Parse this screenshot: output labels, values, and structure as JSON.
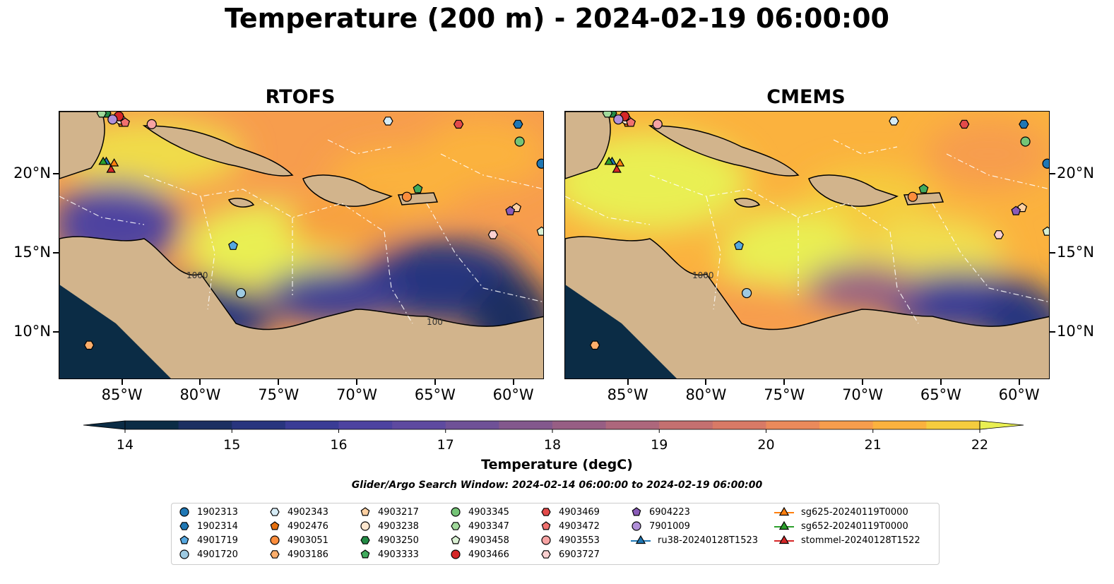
{
  "title": "Temperature (200 m) - 2024-02-19 06:00:00",
  "panels": [
    {
      "title": "RTOFS",
      "contours": [
        {
          "label": "100"
        },
        {
          "label": "100"
        },
        {
          "label": "1000"
        },
        {
          "label": "1000"
        }
      ]
    },
    {
      "title": "CMEMS",
      "contours": [
        {
          "label": "100"
        },
        {
          "label": "1000"
        }
      ]
    }
  ],
  "colorbar": {
    "label": "Temperature (degC)",
    "ticks": [
      "14",
      "15",
      "16",
      "17",
      "18",
      "19",
      "20",
      "21",
      "22"
    ],
    "min": 14,
    "max": 22,
    "step": 0.5,
    "colors": [
      "#0b2c45",
      "#1b2f61",
      "#28357e",
      "#3a3c95",
      "#4d43a0",
      "#5e4aa0",
      "#6f5197",
      "#83588d",
      "#975e84",
      "#ad677c",
      "#c47070",
      "#d87a66",
      "#ea8a5b",
      "#f79d4d",
      "#fbb23e",
      "#f5cc3e",
      "#e9ef52"
    ]
  },
  "lon_ticks": [
    "85°W",
    "80°W",
    "75°W",
    "70°W",
    "65°W",
    "60°W"
  ],
  "lat_ticks": [
    "20°N",
    "15°N",
    "10°N"
  ],
  "search_window": "Glider/Argo Search Window: 2024-02-14 06:00:00 to 2024-02-19 06:00:00",
  "legend": [
    {
      "label": "1902313",
      "marker": "circle",
      "color": "#1f77b4"
    },
    {
      "label": "1902314",
      "marker": "hexagon",
      "color": "#1f77b4"
    },
    {
      "label": "4901719",
      "marker": "pentagon",
      "color": "#56a8e0"
    },
    {
      "label": "4901720",
      "marker": "circle",
      "color": "#9ecae1"
    },
    {
      "label": "4902343",
      "marker": "hexagon",
      "color": "#d6ecf6"
    },
    {
      "label": "4902476",
      "marker": "pentagon",
      "color": "#e6700f"
    },
    {
      "label": "4903051",
      "marker": "circle",
      "color": "#fd8d3c"
    },
    {
      "label": "4903186",
      "marker": "hexagon",
      "color": "#fdae6b"
    },
    {
      "label": "4903217",
      "marker": "pentagon",
      "color": "#fdd0a2"
    },
    {
      "label": "4903238",
      "marker": "circle",
      "color": "#fde6ce"
    },
    {
      "label": "4903250",
      "marker": "hexagon",
      "color": "#238b45"
    },
    {
      "label": "4903333",
      "marker": "pentagon",
      "color": "#41ab5d"
    },
    {
      "label": "4903345",
      "marker": "circle",
      "color": "#74c476"
    },
    {
      "label": "4903347",
      "marker": "hexagon",
      "color": "#a1d99b"
    },
    {
      "label": "4903458",
      "marker": "pentagon",
      "color": "#d9f0d3"
    },
    {
      "label": "4903466",
      "marker": "circle",
      "color": "#d62728"
    },
    {
      "label": "4903469",
      "marker": "hexagon",
      "color": "#e34a4a"
    },
    {
      "label": "4903472",
      "marker": "pentagon",
      "color": "#f0716f"
    },
    {
      "label": "4903553",
      "marker": "circle",
      "color": "#f7a3a3"
    },
    {
      "label": "6903727",
      "marker": "hexagon",
      "color": "#fbd0d0"
    },
    {
      "label": "6904223",
      "marker": "pentagon",
      "color": "#8a5bb8"
    },
    {
      "label": "7901009",
      "marker": "circle",
      "color": "#b08fd8"
    },
    {
      "label": "ru38-20240128T1523",
      "marker": "triangle-line",
      "color": "#1f77b4"
    },
    {
      "label": "sg625-20240119T0000",
      "marker": "triangle-line",
      "color": "#ff7f0e"
    },
    {
      "label": "sg652-20240119T0000",
      "marker": "triangle-line",
      "color": "#2ca02c"
    },
    {
      "label": "stommel-20240128T1522",
      "marker": "triangle-line",
      "color": "#d62728"
    }
  ],
  "chart_data": [
    {
      "type": "heatmap",
      "title": "RTOFS",
      "variable": "Temperature (degC)",
      "depth": "200 m",
      "x_range": [
        -89,
        -58
      ],
      "y_range": [
        7,
        24
      ],
      "colorbar_range": [
        14,
        22
      ],
      "field_centers": [
        {
          "lon": -76,
          "lat": 16.5,
          "value": 22
        },
        {
          "lon": -80,
          "lat": 21.5,
          "value": 22
        },
        {
          "lon": -64,
          "lat": 19.5,
          "value": 21
        },
        {
          "lon": -60,
          "lat": 22,
          "value": 21
        },
        {
          "lon": -68,
          "lat": 16.5,
          "value": 20
        },
        {
          "lon": -80,
          "lat": 11,
          "value": 14.5
        },
        {
          "lon": -63,
          "lat": 12.5,
          "value": 14.5
        },
        {
          "lon": -72,
          "lat": 12.5,
          "value": 15.5
        },
        {
          "lon": -84,
          "lat": 17,
          "value": 16
        }
      ]
    },
    {
      "type": "heatmap",
      "title": "CMEMS",
      "variable": "Temperature (degC)",
      "depth": "200 m",
      "x_range": [
        -89,
        -58
      ],
      "y_range": [
        7,
        24
      ],
      "colorbar_range": [
        14,
        22
      ],
      "field_centers": [
        {
          "lon": -82,
          "lat": 20,
          "value": 22
        },
        {
          "lon": -74,
          "lat": 16,
          "value": 22
        },
        {
          "lon": -65,
          "lat": 16.5,
          "value": 22
        },
        {
          "lon": -70,
          "lat": 20,
          "value": 21
        },
        {
          "lon": -60,
          "lat": 22,
          "value": 21
        },
        {
          "lon": -62,
          "lat": 12,
          "value": 15
        },
        {
          "lon": -78,
          "lat": 12,
          "value": 19.5
        }
      ]
    }
  ],
  "observations": [
    {
      "id": "1902313",
      "lon": -58.2,
      "lat": 20.7
    },
    {
      "id": "1902314",
      "lon": -59.7,
      "lat": 23.2
    },
    {
      "id": "4901719",
      "lon": -77.9,
      "lat": 15.5
    },
    {
      "id": "4901720",
      "lon": -77.4,
      "lat": 12.5
    },
    {
      "id": "4902343",
      "lon": -68.0,
      "lat": 23.4
    },
    {
      "id": "4902476",
      "lon": -85.0,
      "lat": 23.3
    },
    {
      "id": "4903051",
      "lon": -66.8,
      "lat": 18.6
    },
    {
      "id": "4903186",
      "lon": -87.1,
      "lat": 9.2
    },
    {
      "id": "4903217",
      "lon": -59.8,
      "lat": 17.9
    },
    {
      "id": "4903238",
      "lon": -85.1,
      "lat": 23.5
    },
    {
      "id": "4903250",
      "lon": -86.0,
      "lat": 23.9
    },
    {
      "id": "4903333",
      "lon": -66.1,
      "lat": 19.1
    },
    {
      "id": "4903345",
      "lon": -59.6,
      "lat": 22.1
    },
    {
      "id": "4903347",
      "lon": -86.3,
      "lat": 23.9
    },
    {
      "id": "4903458",
      "lon": -58.2,
      "lat": 16.4
    },
    {
      "id": "4903466",
      "lon": -85.2,
      "lat": 23.7
    },
    {
      "id": "4903469",
      "lon": -63.5,
      "lat": 23.2
    },
    {
      "id": "4903472",
      "lon": -84.8,
      "lat": 23.3
    },
    {
      "id": "4903553",
      "lon": -83.1,
      "lat": 23.2
    },
    {
      "id": "6903727",
      "lon": -61.3,
      "lat": 16.2
    },
    {
      "id": "6904223",
      "lon": -60.2,
      "lat": 17.7
    },
    {
      "id": "7901009",
      "lon": -85.6,
      "lat": 23.5
    },
    {
      "id": "ru38-20240128T1523",
      "lon": -86.0,
      "lat": 20.8
    },
    {
      "id": "sg625-20240119T0000",
      "lon": -85.5,
      "lat": 20.7
    },
    {
      "id": "sg652-20240119T0000",
      "lon": -86.2,
      "lat": 20.8
    },
    {
      "id": "stommel-20240128T1522",
      "lon": -85.7,
      "lat": 20.3
    }
  ]
}
